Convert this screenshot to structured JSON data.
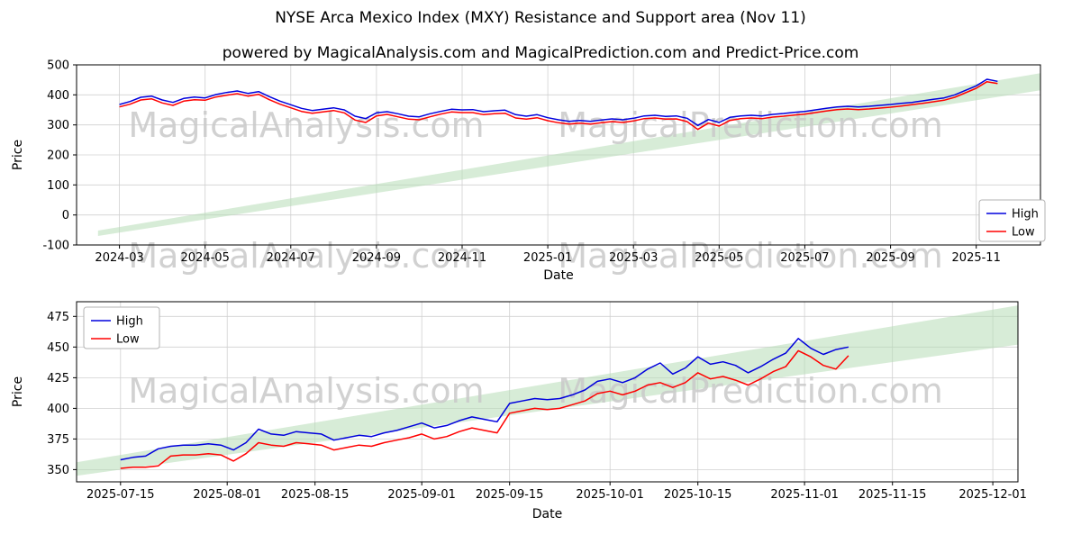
{
  "page_title": "NYSE Arca Mexico Index (MXY) Resistance and Support area (Nov 11)",
  "page_subtitle": "powered by MagicalAnalysis.com and MagicalPrediction.com and Predict-Price.com",
  "watermark": {
    "left": "MagicalAnalysis.com",
    "right": "MagicalPrediction.com"
  },
  "colors": {
    "high": "#0000dd",
    "low": "#ff0000",
    "band": "#b7dcb7",
    "grid": "#d0d0d0",
    "watermark": "#c9c9c9",
    "axis": "#000000",
    "legend_border": "#b3b3b3"
  },
  "chart_data": [
    {
      "type": "line",
      "title": "",
      "xlabel": "Date",
      "ylabel": "Price",
      "grid": true,
      "x_unit": "months since 2024-03",
      "xlim": [
        -1,
        21.5
      ],
      "ylim": [
        -100,
        500
      ],
      "yticks": [
        -100,
        0,
        100,
        200,
        300,
        400,
        500
      ],
      "xticks": [
        {
          "v": 0,
          "label": "2024-03"
        },
        {
          "v": 2,
          "label": "2024-05"
        },
        {
          "v": 4,
          "label": "2024-07"
        },
        {
          "v": 6,
          "label": "2024-09"
        },
        {
          "v": 8,
          "label": "2024-11"
        },
        {
          "v": 10,
          "label": "2025-01"
        },
        {
          "v": 12,
          "label": "2025-03"
        },
        {
          "v": 14,
          "label": "2025-05"
        },
        {
          "v": 16,
          "label": "2025-07"
        },
        {
          "v": 18,
          "label": "2025-09"
        },
        {
          "v": 20,
          "label": "2025-11"
        }
      ],
      "legend": {
        "position": "center right",
        "entries": [
          "High",
          "Low"
        ]
      },
      "band": {
        "name": "resistance-support-area",
        "x": [
          -0.5,
          21.5
        ],
        "lower": [
          -70,
          415
        ],
        "upper": [
          -52,
          472
        ]
      },
      "x": [
        0,
        0.25,
        0.5,
        0.75,
        1,
        1.25,
        1.5,
        1.75,
        2,
        2.25,
        2.5,
        2.75,
        3,
        3.25,
        3.5,
        3.75,
        4,
        4.25,
        4.5,
        4.75,
        5,
        5.25,
        5.5,
        5.75,
        6,
        6.25,
        6.5,
        6.75,
        7,
        7.25,
        7.5,
        7.75,
        8,
        8.25,
        8.5,
        8.75,
        9,
        9.25,
        9.5,
        9.75,
        10,
        10.25,
        10.5,
        10.75,
        11,
        11.25,
        11.5,
        11.75,
        12,
        12.25,
        12.5,
        12.75,
        13,
        13.25,
        13.5,
        13.75,
        14,
        14.25,
        14.5,
        14.75,
        15,
        15.25,
        15.5,
        15.75,
        16,
        16.25,
        16.5,
        16.75,
        17,
        17.25,
        17.5,
        17.75,
        18,
        18.25,
        18.5,
        18.75,
        19,
        19.25,
        19.5,
        19.75,
        20,
        20.25,
        20.5
      ],
      "series": [
        {
          "name": "High",
          "color": "#0000dd",
          "values": [
            368,
            378,
            392,
            396,
            383,
            375,
            388,
            393,
            390,
            401,
            408,
            413,
            405,
            411,
            394,
            379,
            367,
            355,
            348,
            352,
            357,
            350,
            329,
            321,
            340,
            344,
            337,
            329,
            327,
            337,
            345,
            352,
            350,
            351,
            344,
            347,
            349,
            334,
            329,
            334,
            324,
            317,
            312,
            315,
            312,
            316,
            320,
            317,
            322,
            330,
            332,
            328,
            330,
            322,
            298,
            318,
            308,
            325,
            330,
            332,
            330,
            335,
            338,
            342,
            345,
            350,
            355,
            360,
            362,
            360,
            362,
            365,
            368,
            372,
            375,
            380,
            385,
            390,
            400,
            415,
            430,
            452,
            445
          ]
        },
        {
          "name": "Low",
          "color": "#ff0000",
          "values": [
            360,
            369,
            383,
            387,
            373,
            365,
            379,
            384,
            382,
            393,
            399,
            404,
            396,
            402,
            384,
            369,
            357,
            345,
            339,
            343,
            348,
            340,
            316,
            308,
            330,
            335,
            327,
            319,
            317,
            327,
            336,
            343,
            341,
            341,
            334,
            337,
            339,
            323,
            319,
            324,
            314,
            307,
            303,
            306,
            303,
            307,
            311,
            308,
            313,
            321,
            323,
            319,
            320,
            311,
            285,
            306,
            296,
            315,
            321,
            323,
            321,
            326,
            329,
            333,
            336,
            341,
            346,
            351,
            353,
            351,
            353,
            356,
            359,
            363,
            367,
            372,
            377,
            382,
            392,
            407,
            422,
            444,
            438
          ]
        }
      ]
    },
    {
      "type": "line",
      "title": "",
      "xlabel": "Date",
      "ylabel": "Price",
      "grid": true,
      "x_unit": "days since 2025-07-15",
      "xlim": [
        -7,
        143
      ],
      "ylim": [
        340,
        487
      ],
      "yticks": [
        350,
        375,
        400,
        425,
        450,
        475
      ],
      "xticks": [
        {
          "v": 0,
          "label": "2025-07-15"
        },
        {
          "v": 17,
          "label": "2025-08-01"
        },
        {
          "v": 31,
          "label": "2025-08-15"
        },
        {
          "v": 48,
          "label": "2025-09-01"
        },
        {
          "v": 62,
          "label": "2025-09-15"
        },
        {
          "v": 78,
          "label": "2025-10-01"
        },
        {
          "v": 92,
          "label": "2025-10-15"
        },
        {
          "v": 109,
          "label": "2025-11-01"
        },
        {
          "v": 123,
          "label": "2025-11-15"
        },
        {
          "v": 139,
          "label": "2025-12-01"
        }
      ],
      "legend": {
        "position": "upper left",
        "entries": [
          "High",
          "Low"
        ]
      },
      "band": {
        "name": "resistance-support-area",
        "x": [
          -7,
          143
        ],
        "lower": [
          345,
          452
        ],
        "upper": [
          356,
          484
        ]
      },
      "x": [
        0,
        2,
        4,
        6,
        8,
        10,
        12,
        14,
        16,
        18,
        20,
        22,
        24,
        26,
        28,
        30,
        32,
        34,
        36,
        38,
        40,
        42,
        44,
        46,
        48,
        50,
        52,
        54,
        56,
        58,
        60,
        62,
        64,
        66,
        68,
        70,
        72,
        74,
        76,
        78,
        80,
        82,
        84,
        86,
        88,
        90,
        92,
        94,
        96,
        98,
        100,
        102,
        104,
        106,
        108,
        110,
        112,
        114,
        116
      ],
      "series": [
        {
          "name": "High",
          "color": "#0000dd",
          "values": [
            358,
            360,
            361,
            367,
            369,
            370,
            370,
            371,
            370,
            366,
            372,
            383,
            379,
            378,
            381,
            380,
            379,
            374,
            376,
            378,
            377,
            380,
            382,
            385,
            388,
            384,
            386,
            390,
            393,
            391,
            389,
            404,
            406,
            408,
            407,
            408,
            411,
            415,
            422,
            424,
            421,
            425,
            432,
            437,
            428,
            433,
            442,
            436,
            438,
            435,
            429,
            434,
            440,
            445,
            457,
            449,
            444,
            448,
            450
          ]
        },
        {
          "name": "Low",
          "color": "#ff0000",
          "values": [
            351,
            352,
            352,
            353,
            361,
            362,
            362,
            363,
            362,
            357,
            363,
            372,
            370,
            369,
            372,
            371,
            370,
            366,
            368,
            370,
            369,
            372,
            374,
            376,
            379,
            375,
            377,
            381,
            384,
            382,
            380,
            396,
            398,
            400,
            399,
            400,
            403,
            406,
            412,
            414,
            411,
            414,
            419,
            421,
            417,
            421,
            429,
            424,
            426,
            423,
            419,
            424,
            430,
            434,
            447,
            442,
            435,
            432,
            443
          ]
        }
      ]
    }
  ]
}
